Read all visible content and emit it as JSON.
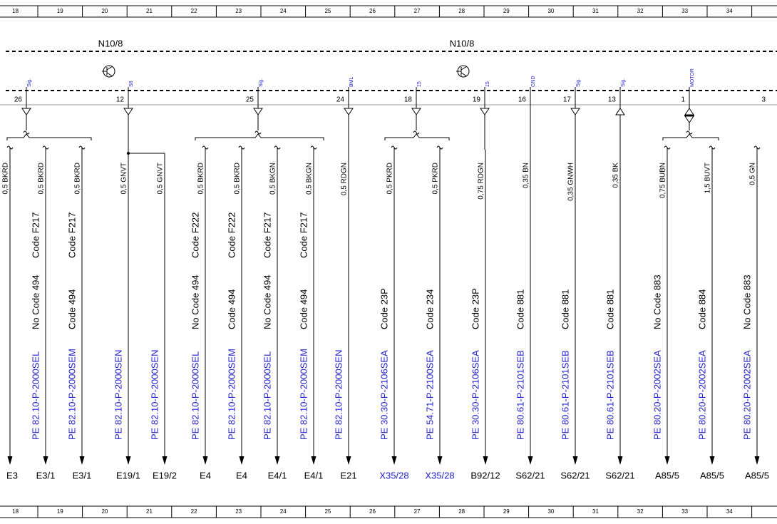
{
  "ruler": [
    "18",
    "19",
    "20",
    "21",
    "22",
    "23",
    "24",
    "25",
    "26",
    "27",
    "28",
    "29",
    "30",
    "31",
    "32",
    "33",
    "34"
  ],
  "modules": [
    {
      "label": "N10/8"
    },
    {
      "label": "N10/8"
    }
  ],
  "pins": [
    {
      "number": "26",
      "signal": "Sig."
    },
    {
      "number": "12",
      "signal": "S8"
    },
    {
      "number": "25",
      "signal": "Sig."
    },
    {
      "number": "24",
      "signal": "BML"
    },
    {
      "number": "18",
      "signal": "15"
    },
    {
      "number": "19",
      "signal": "15"
    },
    {
      "number": "16",
      "signal": "GND"
    },
    {
      "number": "17",
      "signal": "Sig."
    },
    {
      "number": "13",
      "signal": "Sig."
    },
    {
      "number": "1",
      "signal": "MOTOR"
    },
    {
      "number": "3"
    }
  ],
  "wires": [
    {
      "label": "0,5 BKRD",
      "codes": [],
      "dest": "E3"
    },
    {
      "label": "0,5 BKRD",
      "codes": [
        "Code F217",
        "No Code 494"
      ],
      "ref": "PE 82.10-P-2000SEL",
      "dest": "E3/1"
    },
    {
      "label": "0,5 BKRD",
      "codes": [
        "Code F217",
        "Code 494"
      ],
      "ref": "PE 82.10-P-2000SEM",
      "dest": "E3/1"
    },
    {
      "label": "0,5 GNVT",
      "codes": [],
      "ref": "PE 82.10-P-2000SEN",
      "dest": "E19/1"
    },
    {
      "label": "0,5 GNVT",
      "codes": [],
      "ref": "PE 82.10-P-2000SEN",
      "dest": "E19/2"
    },
    {
      "label": "0,5 BKRD",
      "codes": [
        "Code F222",
        "No Code 494"
      ],
      "ref": "PE 82.10-P-2000SEL",
      "dest": "E4"
    },
    {
      "label": "0,5 BKRD",
      "codes": [
        "Code F222",
        "Code 494"
      ],
      "ref": "PE 82.10-P-2000SEM",
      "dest": "E4"
    },
    {
      "label": "0,5 BKGN",
      "codes": [
        "Code F217",
        "No Code 494"
      ],
      "ref": "PE 82.10-P-2000SEL",
      "dest": "E4/1"
    },
    {
      "label": "0,5 BKGN",
      "codes": [
        "Code F217",
        "Code 494"
      ],
      "ref": "PE 82.10-P-2000SEM",
      "dest": "E4/1"
    },
    {
      "label": "0,5 RDGN",
      "codes": [],
      "ref": "PE 82.10-P-2000SEN",
      "dest": "E21"
    },
    {
      "label": "0,5 PKRD",
      "codes": [
        "Code 23P"
      ],
      "ref": "PE 30.30-P-2106SEA",
      "dest": "X35/28",
      "dest_is_link": true
    },
    {
      "label": "0,5 PKRD",
      "codes": [
        "Code 234"
      ],
      "ref": "PE 54.71-P-2100SEA",
      "dest": "X35/28",
      "dest_is_link": true
    },
    {
      "label": "0,75 RDGN",
      "codes": [
        "Code 23P"
      ],
      "ref": "PE 30.30-P-2106SEA",
      "dest": "B92/12"
    },
    {
      "label": "0,35 BN",
      "codes": [
        "Code 881"
      ],
      "ref": "PE 80.61-P-2101SEB",
      "dest": "S62/21"
    },
    {
      "label": "0,35 GNWH",
      "codes": [
        "Code 881"
      ],
      "ref": "PE 80.61-P-2101SEB",
      "dest": "S62/21"
    },
    {
      "label": "0,35 BK",
      "codes": [
        "Code 881"
      ],
      "ref": "PE 80.61-P-2101SEB",
      "dest": "S62/21"
    },
    {
      "label": "0,75 BUBN",
      "codes": [
        "No Code 883"
      ],
      "ref": "PE 80.20-P-2002SEA",
      "dest": "A85/5"
    },
    {
      "label": "1,5 BUVT",
      "codes": [
        "Code 884"
      ],
      "ref": "PE 80.20-P-2002SEA",
      "dest": "A85/5"
    },
    {
      "label": "0,5 GN",
      "codes": [
        "No Code 883"
      ],
      "ref": "PE 80.20-P-2002SEA",
      "dest": "A85/5"
    }
  ]
}
